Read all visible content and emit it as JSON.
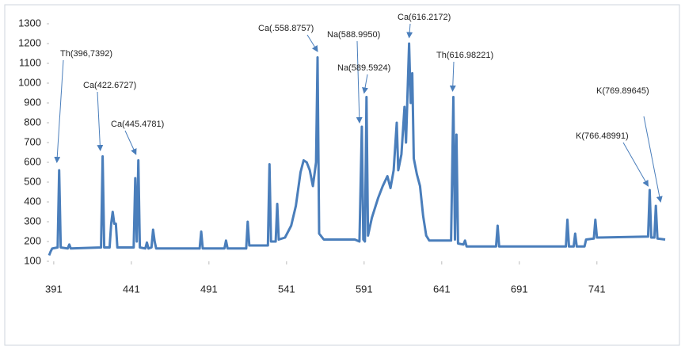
{
  "chart_data": {
    "type": "line",
    "x": [
      388,
      389,
      390,
      393.5,
      394.5,
      395.5,
      400,
      401,
      402,
      421.5,
      422.5,
      423.5,
      427,
      428,
      429,
      430,
      431,
      432,
      442.5,
      443.5,
      444.5,
      445.5,
      446.5,
      450,
      451,
      452,
      454,
      455,
      456,
      457,
      485,
      486,
      487,
      501,
      502,
      503,
      515,
      516,
      517,
      529,
      530,
      531,
      534,
      535,
      536,
      540,
      544,
      547,
      550,
      552,
      554,
      556,
      558,
      560,
      561,
      562,
      565,
      585,
      588,
      589.5,
      590.5,
      591.5,
      592.5,
      593.5,
      596,
      600,
      603,
      606,
      608,
      610,
      612,
      613,
      615,
      617,
      618,
      620,
      621,
      622,
      623,
      625,
      627,
      629,
      631,
      633,
      647,
      648.5,
      649.5,
      650.5,
      651.5,
      655,
      656,
      657,
      676,
      677,
      678,
      721,
      722,
      723,
      726,
      727,
      728,
      733,
      734,
      739,
      740,
      741,
      774,
      775,
      776,
      778,
      779,
      780,
      785
    ],
    "values": [
      130,
      150,
      165,
      170,
      560,
      170,
      165,
      185,
      165,
      170,
      630,
      170,
      170,
      290,
      350,
      290,
      290,
      170,
      170,
      520,
      200,
      610,
      170,
      165,
      195,
      165,
      170,
      260,
      200,
      165,
      165,
      250,
      165,
      165,
      205,
      165,
      165,
      300,
      180,
      180,
      590,
      200,
      200,
      390,
      210,
      220,
      280,
      380,
      550,
      610,
      600,
      560,
      480,
      600,
      1130,
      240,
      210,
      210,
      200,
      780,
      210,
      200,
      930,
      230,
      320,
      420,
      480,
      530,
      470,
      560,
      800,
      560,
      640,
      880,
      700,
      1200,
      900,
      1050,
      620,
      540,
      480,
      330,
      230,
      205,
      205,
      930,
      210,
      740,
      190,
      185,
      205,
      175,
      175,
      280,
      175,
      175,
      310,
      175,
      175,
      240,
      175,
      175,
      210,
      215,
      310,
      220,
      225,
      460,
      220,
      220,
      380,
      215,
      210
    ],
    "color": "#4a7ebb",
    "xlim": [
      388,
      785
    ],
    "xticks": [
      391,
      441,
      491,
      541,
      591,
      641,
      691,
      741
    ],
    "ylim": [
      100,
      1300
    ],
    "yticks": [
      100,
      200,
      300,
      400,
      500,
      600,
      700,
      800,
      900,
      1000,
      1100,
      1200,
      1300
    ],
    "annotations": [
      {
        "text": "Th(396,7392)",
        "x": 393,
        "y": 600
      },
      {
        "text": "Ca(422.6727)",
        "x": 421,
        "y": 660
      },
      {
        "text": "Ca(445.4781)",
        "x": 444,
        "y": 640
      },
      {
        "text": "Ca(.558.8757)",
        "x": 561,
        "y": 1160
      },
      {
        "text": "Na(588.9950)",
        "x": 588,
        "y": 800
      },
      {
        "text": "Na(589.5924)",
        "x": 591,
        "y": 950
      },
      {
        "text": "Ca(616.2172)",
        "x": 620,
        "y": 1230
      },
      {
        "text": "Th(616.98221)",
        "x": 648,
        "y": 960
      },
      {
        "text": "K(766.48991)",
        "x": 774,
        "y": 480
      },
      {
        "text": "K(769.89645)",
        "x": 782,
        "y": 400
      }
    ]
  }
}
